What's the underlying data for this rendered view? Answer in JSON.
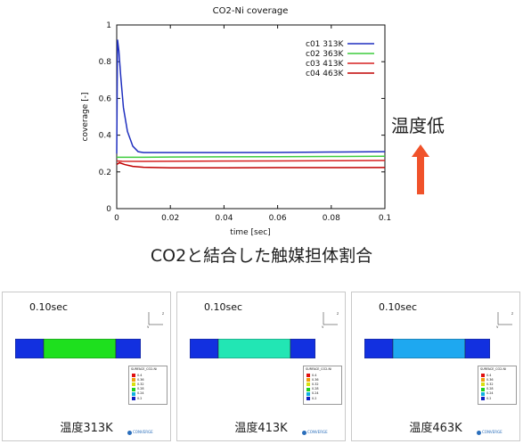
{
  "chart_data": {
    "type": "line",
    "title": "CO2-Ni coverage",
    "xlabel": "time [sec]",
    "ylabel": "coverage [-]",
    "xlim": [
      0,
      0.1
    ],
    "ylim": [
      0,
      1
    ],
    "xticks": [
      "0",
      "0.02",
      "0.04",
      "0.06",
      "0.08",
      "0.1"
    ],
    "yticks": [
      "0",
      "0.2",
      "0.4",
      "0.6",
      "0.8",
      "1"
    ],
    "legend_position": "top-right",
    "series": [
      {
        "name": "c01 313K",
        "color": "#1f2fbf",
        "x": [
          0,
          0.0003,
          0.0008,
          0.0015,
          0.0025,
          0.004,
          0.006,
          0.008,
          0.01,
          0.02,
          0.04,
          0.06,
          0.08,
          0.1
        ],
        "y": [
          0.3,
          0.92,
          0.86,
          0.72,
          0.55,
          0.42,
          0.34,
          0.31,
          0.305,
          0.305,
          0.305,
          0.306,
          0.308,
          0.31
        ]
      },
      {
        "name": "c02 363K",
        "color": "#3dcc3d",
        "x": [
          0,
          0.002,
          0.01,
          0.02,
          0.04,
          0.06,
          0.08,
          0.1
        ],
        "y": [
          0.28,
          0.28,
          0.28,
          0.281,
          0.282,
          0.283,
          0.284,
          0.285
        ]
      },
      {
        "name": "c03 413K",
        "color": "#d62020",
        "x": [
          0,
          0.002,
          0.01,
          0.02,
          0.04,
          0.06,
          0.08,
          0.1
        ],
        "y": [
          0.26,
          0.258,
          0.257,
          0.258,
          0.259,
          0.26,
          0.261,
          0.262
        ]
      },
      {
        "name": "c04 463K",
        "color": "#c00000",
        "x": [
          0,
          0.001,
          0.003,
          0.006,
          0.01,
          0.02,
          0.04,
          0.06,
          0.08,
          0.1
        ],
        "y": [
          0.24,
          0.25,
          0.24,
          0.23,
          0.225,
          0.222,
          0.222,
          0.223,
          0.223,
          0.224
        ]
      }
    ]
  },
  "annotation": {
    "temp_label": "温度低",
    "arrow_color": "#f0522a"
  },
  "caption": "CO2と結合した触媒担体割合",
  "panels": [
    {
      "time": "0.10sec",
      "temperature": "温度313K",
      "middle_color": "#1ee01e"
    },
    {
      "time": "0.10sec",
      "temperature": "温度413K",
      "middle_color": "#22e6b4"
    },
    {
      "time": "0.10sec",
      "temperature": "温度463K",
      "middle_color": "#1ea8f0"
    }
  ],
  "bar_end_color": "#1230e0",
  "contour_legend": {
    "title": "SURFACE_CO2-Ni",
    "items": [
      {
        "label": "0.4",
        "color": "#e01010"
      },
      {
        "label": "0.36",
        "color": "#f0a010"
      },
      {
        "label": "0.32",
        "color": "#d8e010"
      },
      {
        "label": "0.28",
        "color": "#20d020"
      },
      {
        "label": "0.24",
        "color": "#10b0e0"
      },
      {
        "label": "0.2",
        "color": "#1020c0"
      }
    ]
  },
  "logo_text": "CONVERGE"
}
